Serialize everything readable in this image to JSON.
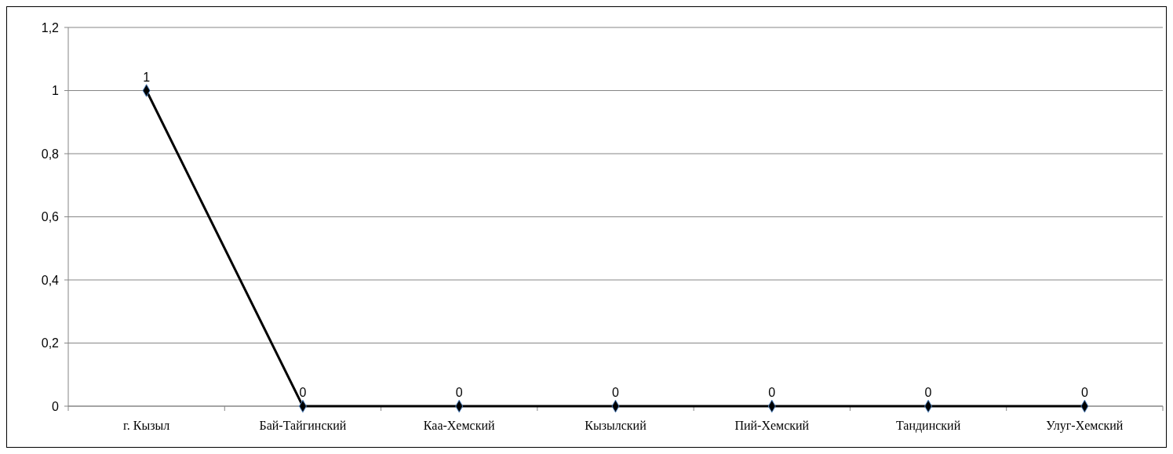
{
  "chart_data": {
    "type": "line",
    "categories": [
      "г. Кызыл",
      "Бай-Тайгинский",
      "Каа-Хемский",
      "Кызылский",
      "Пий-Хемский",
      "Тандинский",
      "Улуг-Хемский"
    ],
    "series": [
      {
        "color": "#000000",
        "values": [
          1,
          0,
          0,
          0,
          0,
          0,
          0
        ]
      }
    ],
    "ylim": [
      0,
      1.2
    ],
    "yticks": [
      0,
      {
        "value": 0.2,
        "label": "0,2"
      },
      {
        "value": 0.4,
        "label": "0,4"
      },
      {
        "value": 0.6,
        "label": "0,6"
      },
      {
        "value": 0.8,
        "label": "0,8"
      },
      1,
      {
        "value": 1.2,
        "label": "1,2"
      }
    ],
    "grid": "y",
    "marker": "diamond",
    "data_labels": true
  }
}
